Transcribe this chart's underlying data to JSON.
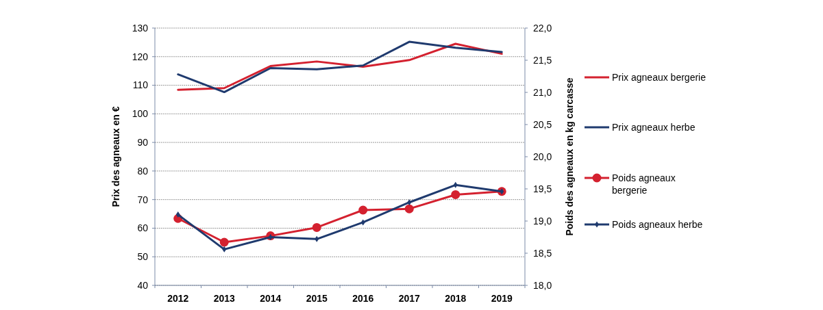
{
  "chart_data": {
    "type": "line",
    "categories": [
      "2012",
      "2013",
      "2014",
      "2015",
      "2016",
      "2017",
      "2018",
      "2019"
    ],
    "ylabel": "Prix des agneaux en €",
    "y2label": "Poids des agneaux en kg carcasse",
    "ylim": [
      40,
      130
    ],
    "yticks": [
      40,
      50,
      60,
      70,
      80,
      90,
      100,
      110,
      120,
      130
    ],
    "y2lim": [
      18,
      22
    ],
    "y2ticks": [
      {
        "value": 18,
        "label": "18,0"
      },
      {
        "value": 18.5,
        "label": "18,5"
      },
      {
        "value": 19,
        "label": "19,0"
      },
      {
        "value": 19.5,
        "label": "19,5"
      },
      {
        "value": 20,
        "label": "20,0"
      },
      {
        "value": 20.5,
        "label": "20,5"
      },
      {
        "value": 21,
        "label": "21,0"
      },
      {
        "value": 21.5,
        "label": "21,5"
      },
      {
        "value": 22,
        "label": "22,0"
      }
    ],
    "grid": "y",
    "legend": "right",
    "series": [
      {
        "name": "Prix agneaux bergerie",
        "color": "#d4212f",
        "marker": "none",
        "values": [
          108.4,
          109,
          116.7,
          118.3,
          116.5,
          118.8,
          124.5,
          121
        ]
      },
      {
        "name": "Prix agneaux herbe",
        "color": "#1f3a6e",
        "marker": "none",
        "values": [
          113.8,
          107.6,
          116,
          115.6,
          116.9,
          125.2,
          123.1,
          121.6
        ]
      },
      {
        "name": "Poids agneaux bergerie",
        "color": "#d4212f",
        "marker": "circle",
        "axis": "y2",
        "values": [
          19.04,
          18.67,
          18.77,
          18.9,
          19.17,
          19.19,
          19.41,
          19.46
        ]
      },
      {
        "name": "Poids agneaux herbe",
        "color": "#1f3a6e",
        "marker": "diamond",
        "axis": "y2",
        "values": [
          19.1,
          18.56,
          18.75,
          18.72,
          18.98,
          19.29,
          19.56,
          19.46
        ]
      }
    ]
  }
}
